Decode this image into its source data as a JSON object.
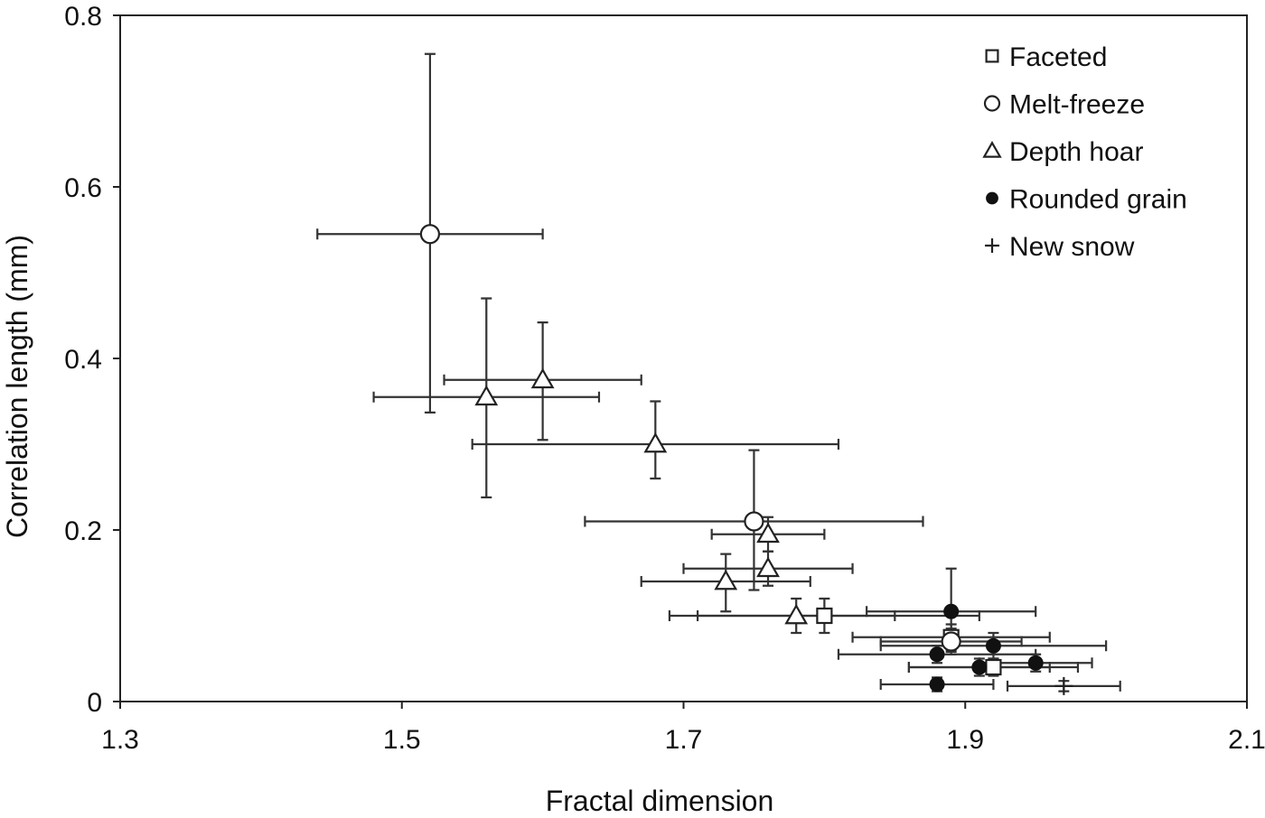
{
  "chart_data": {
    "type": "scatter",
    "title": "",
    "xlabel": "Fractal dimension",
    "ylabel": "Correlation length (mm)",
    "xlim": [
      1.3,
      2.1
    ],
    "ylim": [
      0,
      0.8
    ],
    "xticks": [
      "1.3",
      "1.5",
      "1.7",
      "1.9",
      "2.1"
    ],
    "yticks": [
      "0",
      "0.2",
      "0.4",
      "0.6",
      "0.8"
    ],
    "grid": false,
    "legend": "top-right",
    "series": [
      {
        "name": "Faceted",
        "marker": "square",
        "points": [
          {
            "x": 1.8,
            "y": 0.1,
            "xerr": [
              1.69,
              1.91
            ],
            "yerr": [
              0.08,
              0.12
            ]
          },
          {
            "x": 1.89,
            "y": 0.075,
            "xerr": [
              1.82,
              1.96
            ],
            "yerr": [
              0.06,
              0.09
            ]
          },
          {
            "x": 1.92,
            "y": 0.04,
            "xerr": [
              1.86,
              1.98
            ],
            "yerr": [
              0.03,
              0.05
            ]
          }
        ]
      },
      {
        "name": "Melt-freeze",
        "marker": "circle",
        "points": [
          {
            "x": 1.52,
            "y": 0.545,
            "xerr": [
              1.44,
              1.6
            ],
            "yerr": [
              0.337,
              0.755
            ]
          },
          {
            "x": 1.75,
            "y": 0.21,
            "xerr": [
              1.63,
              1.87
            ],
            "yerr": [
              0.13,
              0.293
            ]
          },
          {
            "x": 1.89,
            "y": 0.07,
            "xerr": [
              1.84,
              1.94
            ],
            "yerr": [
              0.055,
              0.085
            ]
          }
        ]
      },
      {
        "name": "Depth hoar",
        "marker": "triangle",
        "points": [
          {
            "x": 1.56,
            "y": 0.355,
            "xerr": [
              1.48,
              1.64
            ],
            "yerr": [
              0.238,
              0.47
            ]
          },
          {
            "x": 1.6,
            "y": 0.375,
            "xerr": [
              1.53,
              1.67
            ],
            "yerr": [
              0.305,
              0.442
            ]
          },
          {
            "x": 1.68,
            "y": 0.3,
            "xerr": [
              1.55,
              1.81
            ],
            "yerr": [
              0.26,
              0.35
            ]
          },
          {
            "x": 1.76,
            "y": 0.195,
            "xerr": [
              1.72,
              1.8
            ],
            "yerr": [
              0.175,
              0.215
            ]
          },
          {
            "x": 1.76,
            "y": 0.155,
            "xerr": [
              1.7,
              1.82
            ],
            "yerr": [
              0.135,
              0.175
            ]
          },
          {
            "x": 1.73,
            "y": 0.14,
            "xerr": [
              1.67,
              1.79
            ],
            "yerr": [
              0.105,
              0.172
            ]
          },
          {
            "x": 1.78,
            "y": 0.1,
            "xerr": [
              1.71,
              1.85
            ],
            "yerr": [
              0.08,
              0.12
            ]
          }
        ]
      },
      {
        "name": "Rounded grain",
        "marker": "filled-circle",
        "points": [
          {
            "x": 1.89,
            "y": 0.105,
            "xerr": [
              1.83,
              1.95
            ],
            "yerr": [
              0.058,
              0.155
            ]
          },
          {
            "x": 1.92,
            "y": 0.065,
            "xerr": [
              1.84,
              2.0
            ],
            "yerr": [
              0.05,
              0.08
            ]
          },
          {
            "x": 1.88,
            "y": 0.055,
            "xerr": [
              1.81,
              1.95
            ],
            "yerr": [
              0.045,
              0.065
            ]
          },
          {
            "x": 1.91,
            "y": 0.04,
            "xerr": [
              1.86,
              1.96
            ],
            "yerr": [
              0.03,
              0.05
            ]
          },
          {
            "x": 1.95,
            "y": 0.045,
            "xerr": [
              1.91,
              1.99
            ],
            "yerr": [
              0.035,
              0.055
            ]
          },
          {
            "x": 1.88,
            "y": 0.02,
            "xerr": [
              1.84,
              1.92
            ],
            "yerr": [
              0.012,
              0.028
            ]
          }
        ]
      },
      {
        "name": "New snow",
        "marker": "plus",
        "points": [
          {
            "x": 1.97,
            "y": 0.018,
            "xerr": [
              1.93,
              2.01
            ],
            "yerr": [
              0.012,
              0.024
            ]
          }
        ]
      }
    ]
  }
}
